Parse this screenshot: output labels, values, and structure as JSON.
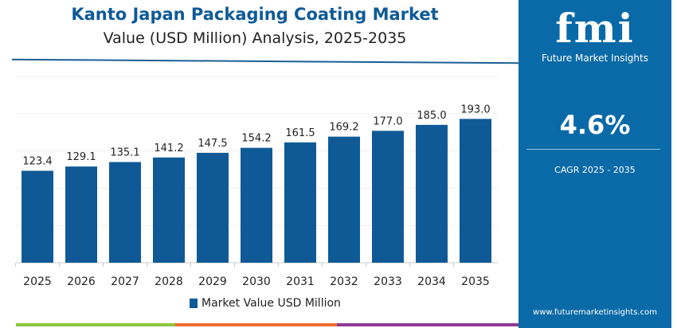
{
  "header": {
    "title": "Kanto Japan Packaging Coating Market",
    "subtitle": "Value (USD Million) Analysis, 2025-2035"
  },
  "panel": {
    "logo": "fmi",
    "logo_sub": "Future Market Insights",
    "cagr_value": "4.6%",
    "cagr_label": "CAGR 2025 - 2035",
    "url": "www.futuremarketinsights.com"
  },
  "colors": {
    "bar": "#0f5a96",
    "panel": "#0a6aa8",
    "strip": [
      "#8dc63f",
      "#f26b2f",
      "#8e3a96"
    ]
  },
  "chart_data": {
    "type": "bar",
    "categories": [
      "2025",
      "2026",
      "2027",
      "2028",
      "2029",
      "2030",
      "2031",
      "2032",
      "2033",
      "2034",
      "2035"
    ],
    "values": [
      123.4,
      129.1,
      135.1,
      141.2,
      147.5,
      154.2,
      161.5,
      169.2,
      177.0,
      185.0,
      193.0
    ],
    "labels": [
      "123.4",
      "129.1",
      "135.1",
      "141.2",
      "147.5",
      "154.2",
      "161.5",
      "169.2",
      "177.0",
      "185.0",
      "193.0"
    ],
    "legend": "Market Value USD Million",
    "ylim": [
      0,
      250
    ],
    "grid": true,
    "legend_position": "bottom"
  }
}
